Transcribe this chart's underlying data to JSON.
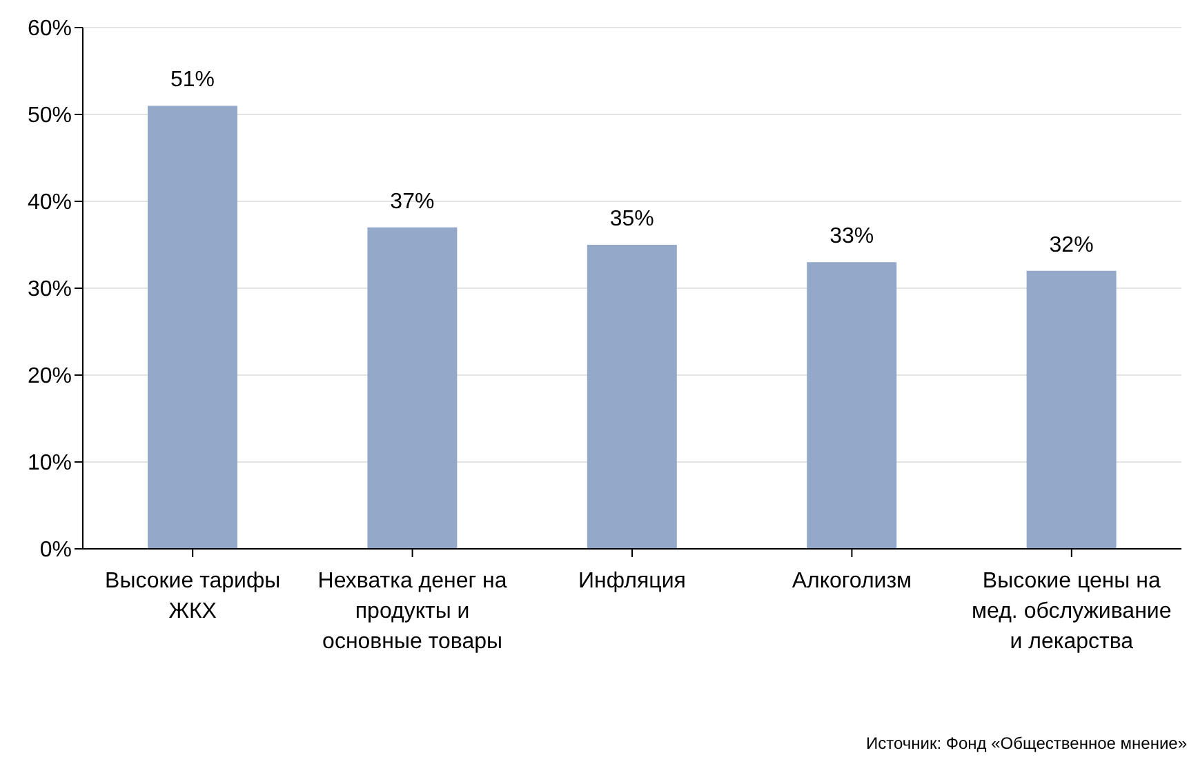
{
  "chart_data": {
    "type": "bar",
    "categories": [
      "Высокие тарифы ЖКХ",
      "Нехватка денег на продукты и основные товары",
      "Инфляция",
      "Алкоголизм",
      "Высокие цены на мед. обслуживание и лекарства"
    ],
    "values": [
      51,
      37,
      35,
      33,
      32
    ],
    "value_labels": [
      "51%",
      "37%",
      "35%",
      "33%",
      "32%"
    ],
    "color": "#94a9c9",
    "ylim": [
      0,
      60
    ],
    "yticks": [
      {
        "value": 0,
        "label": "0%"
      },
      {
        "value": 10,
        "label": "10%"
      },
      {
        "value": 20,
        "label": "20%"
      },
      {
        "value": 30,
        "label": "30%"
      },
      {
        "value": 40,
        "label": "40%"
      },
      {
        "value": 50,
        "label": "50%"
      },
      {
        "value": 60,
        "label": "60%"
      }
    ],
    "grid": "y",
    "annotations": [
      "Источник: Фонд «Общественное мнение»"
    ]
  }
}
